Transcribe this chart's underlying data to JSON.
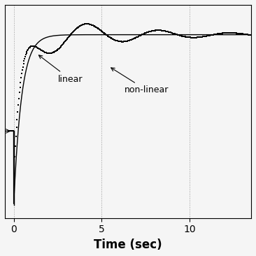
{
  "xlabel": "Time (sec)",
  "xlim": [
    -0.5,
    13.5
  ],
  "ylim": [
    -1.15,
    1.35
  ],
  "x_ticks": [
    0,
    5,
    10
  ],
  "grid_color": "#999999",
  "background_color": "#f5f5f5",
  "linear_color": "#000000",
  "nonlinear_color": "#000000",
  "annotation_linear": "linear",
  "annotation_nonlinear": "non-linear",
  "xlabel_fontsize": 12,
  "annotation_fontsize": 9
}
